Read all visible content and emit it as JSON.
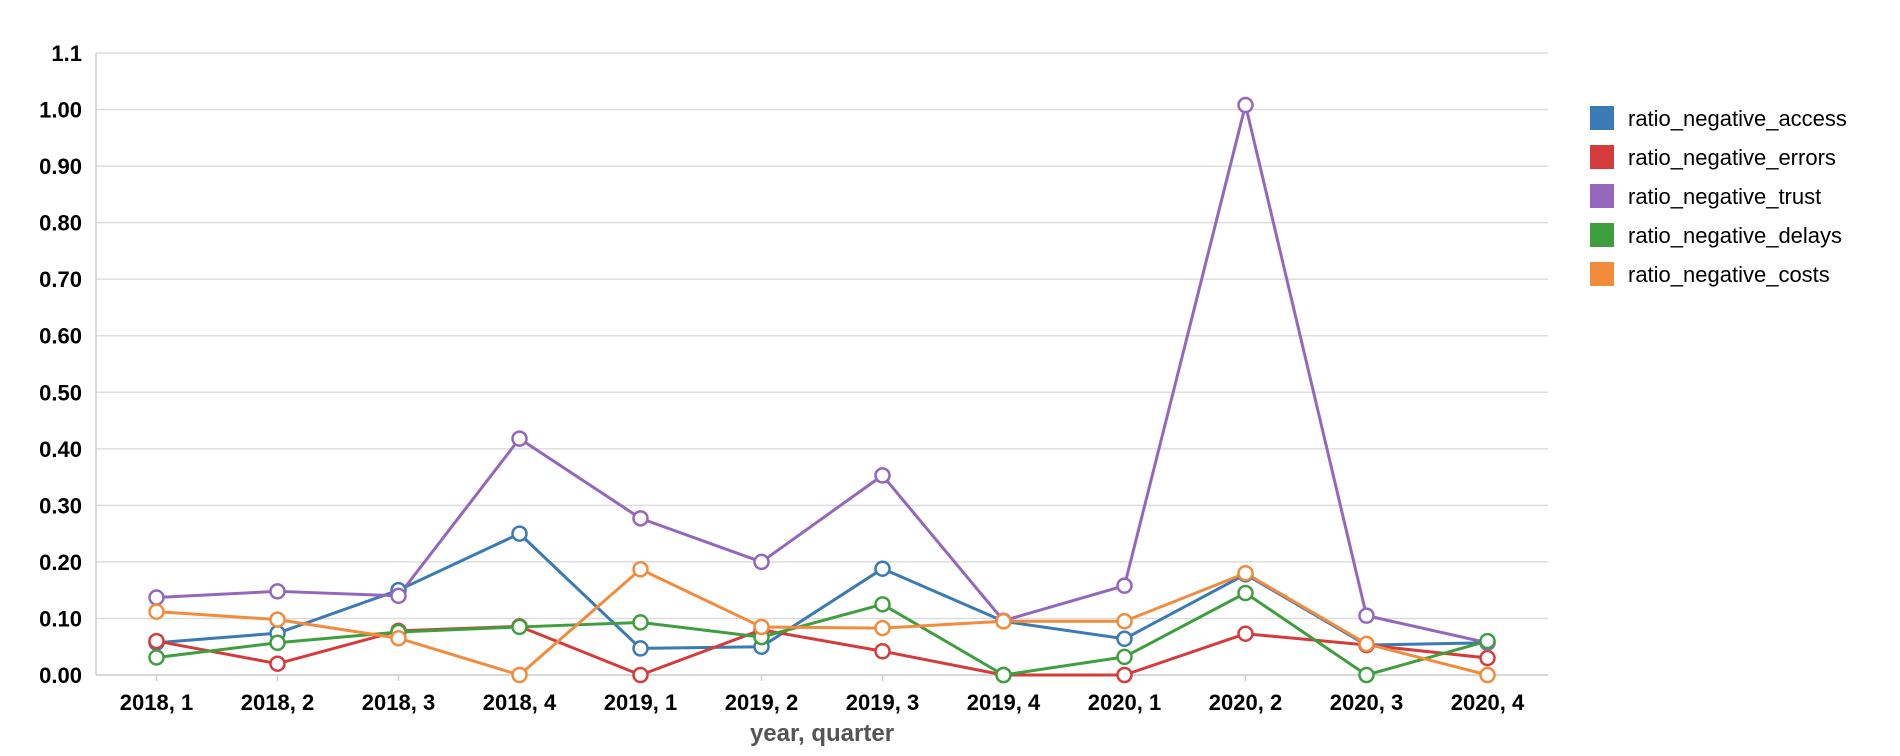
{
  "chart_data": {
    "type": "line",
    "title": "",
    "xlabel": "year, quarter",
    "ylabel": "",
    "categories": [
      "2018, 1",
      "2018, 2",
      "2018, 3",
      "2018, 4",
      "2019, 1",
      "2019, 2",
      "2019, 3",
      "2019, 4",
      "2020, 1",
      "2020, 2",
      "2020, 3",
      "2020, 4"
    ],
    "yticks": [
      "0.00",
      "0.10",
      "0.20",
      "0.30",
      "0.40",
      "0.50",
      "0.60",
      "0.70",
      "0.80",
      "0.90",
      "1.00",
      "1.1"
    ],
    "ylim": [
      0,
      1.1
    ],
    "grid": true,
    "legend_position": "right",
    "series": [
      {
        "name": "ratio_negative_access",
        "color": "#3a7ab5",
        "values": [
          0.057,
          0.074,
          0.15,
          0.25,
          0.047,
          0.05,
          0.188,
          0.095,
          0.064,
          0.178,
          0.053,
          0.057
        ]
      },
      {
        "name": "ratio_negative_errors",
        "color": "#d63b3b",
        "values": [
          0.06,
          0.02,
          0.078,
          0.086,
          0.0,
          0.08,
          0.042,
          0.0,
          0.0,
          0.073,
          0.053,
          0.03
        ]
      },
      {
        "name": "ratio_negative_trust",
        "color": "#9467bd",
        "values": [
          0.137,
          0.148,
          0.14,
          0.418,
          0.277,
          0.2,
          0.353,
          0.096,
          0.158,
          1.008,
          0.105,
          0.057
        ]
      },
      {
        "name": "ratio_negative_delays",
        "color": "#3f9f3f",
        "values": [
          0.031,
          0.057,
          0.076,
          0.085,
          0.093,
          0.067,
          0.125,
          0.0,
          0.032,
          0.145,
          0.0,
          0.06
        ]
      },
      {
        "name": "ratio_negative_costs",
        "color": "#f28c3c",
        "values": [
          0.112,
          0.098,
          0.065,
          0.0,
          0.187,
          0.085,
          0.083,
          0.095,
          0.095,
          0.18,
          0.055,
          0.0
        ]
      }
    ]
  }
}
